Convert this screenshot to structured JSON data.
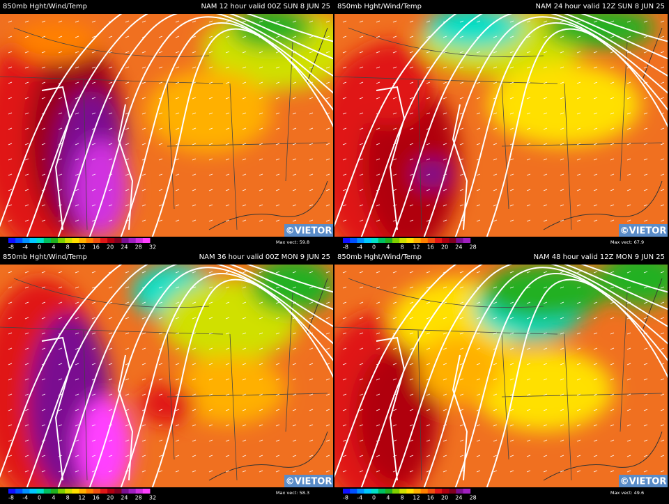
{
  "panels": [
    {
      "title": "850mb Hght/Wind/Temp",
      "valid": "NAM 12 hour valid 00Z SUN  8 JUN 25",
      "colorbar_labels": [
        "-8",
        "-4",
        "0",
        "4",
        "8",
        "12",
        "16",
        "20",
        "24",
        "28",
        "32"
      ],
      "max_vect": "Max vect: 59.8",
      "credit": "©VIETOR"
    },
    {
      "title": "850mb Hght/Wind/Temp",
      "valid": "NAM 24 hour valid 12Z SUN  8 JUN 25",
      "colorbar_labels": [
        "-8",
        "-4",
        "0",
        "4",
        "8",
        "12",
        "16",
        "20",
        "24",
        "28"
      ],
      "max_vect": "Max vect: 67.9",
      "credit": "©VIETOR"
    },
    {
      "title": "850mb Hght/Wind/Temp",
      "valid": "NAM 36 hour valid 00Z MON  9 JUN 25",
      "colorbar_labels": [
        "-8",
        "-4",
        "0",
        "4",
        "8",
        "12",
        "16",
        "20",
        "24",
        "28",
        "32"
      ],
      "max_vect": "Max vect: 58.3",
      "credit": "©VIETOR"
    },
    {
      "title": "850mb Hght/Wind/Temp",
      "valid": "NAM 48 hour valid 12Z MON  9 JUN 25",
      "colorbar_labels": [
        "-8",
        "-4",
        "0",
        "4",
        "8",
        "12",
        "16",
        "20",
        "24",
        "28"
      ],
      "max_vect": "Max vect: 49.6",
      "credit": "©VIETOR"
    }
  ]
}
